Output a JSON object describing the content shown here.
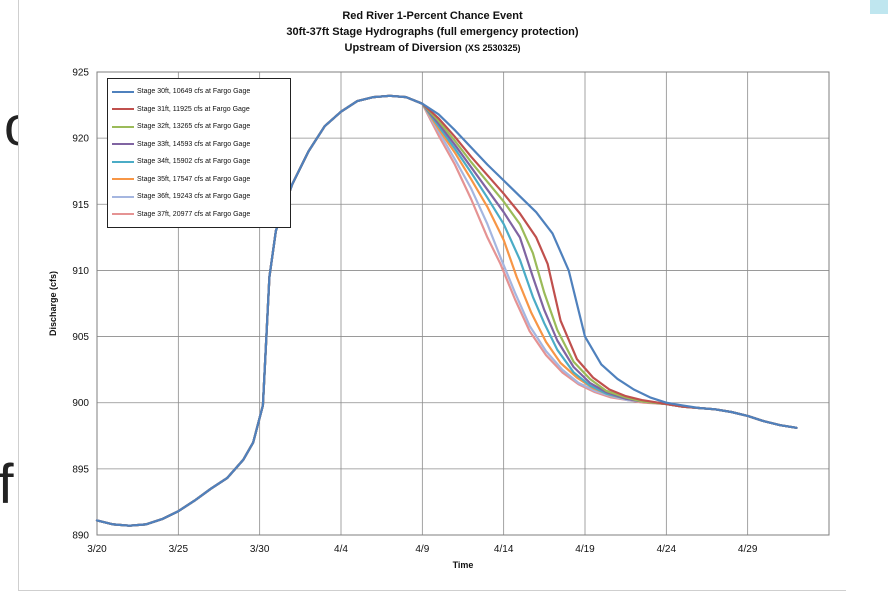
{
  "background_text": {
    "left_glyph_1": "o",
    "left_glyph_2": "f"
  },
  "chart_data": {
    "type": "line",
    "title": "Red River 1-Percent Chance Event",
    "subtitle": "30ft-37ft Stage Hydrographs (full emergency protection)",
    "subtitle2": "Upstream of Diversion",
    "subtitle2_note": "(XS 2530325)",
    "xlabel": "Time",
    "ylabel": "Discharge (cfs)",
    "xlim": [
      0,
      45
    ],
    "ylim": [
      890,
      925
    ],
    "x_ticks": [
      {
        "x": 0,
        "label": "3/20"
      },
      {
        "x": 5,
        "label": "3/25"
      },
      {
        "x": 10,
        "label": "3/30"
      },
      {
        "x": 15,
        "label": "4/4"
      },
      {
        "x": 20,
        "label": "4/9"
      },
      {
        "x": 25,
        "label": "4/14"
      },
      {
        "x": 30,
        "label": "4/19"
      },
      {
        "x": 35,
        "label": "4/24"
      },
      {
        "x": 40,
        "label": "4/29"
      }
    ],
    "y_ticks": [
      890,
      895,
      900,
      905,
      910,
      915,
      920,
      925
    ],
    "grid": true,
    "legend_position": "top-left",
    "common_path": [
      [
        0,
        891.1
      ],
      [
        1,
        890.8
      ],
      [
        2,
        890.7
      ],
      [
        3,
        890.8
      ],
      [
        4,
        891.2
      ],
      [
        5,
        891.8
      ],
      [
        6,
        892.6
      ],
      [
        7,
        893.5
      ],
      [
        8,
        894.3
      ],
      [
        9,
        895.7
      ],
      [
        9.6,
        897.0
      ],
      [
        10.2,
        899.8
      ],
      [
        10.6,
        909.5
      ],
      [
        11,
        913.0
      ],
      [
        12,
        916.5
      ],
      [
        13,
        919.0
      ],
      [
        14,
        920.9
      ],
      [
        15,
        922.0
      ],
      [
        16,
        922.8
      ],
      [
        17,
        923.1
      ],
      [
        18,
        923.2
      ],
      [
        19,
        923.1
      ],
      [
        20,
        922.6
      ]
    ],
    "common_tail": [
      [
        38,
        899.5
      ],
      [
        39,
        899.3
      ],
      [
        40,
        899.0
      ],
      [
        41,
        898.6
      ],
      [
        42,
        898.3
      ],
      [
        43,
        898.1
      ]
    ],
    "series": [
      {
        "name": "Stage 30ft, 10649 cfs at Fargo Gage",
        "color": "#4f81bd",
        "points": [
          [
            21,
            921.8
          ],
          [
            22,
            920.6
          ],
          [
            23,
            919.3
          ],
          [
            24,
            918.0
          ],
          [
            25,
            916.8
          ],
          [
            26,
            915.6
          ],
          [
            27,
            914.4
          ],
          [
            28,
            912.8
          ],
          [
            29,
            910.0
          ],
          [
            30,
            905.0
          ],
          [
            31,
            902.9
          ],
          [
            32,
            901.8
          ],
          [
            33,
            901.0
          ],
          [
            34,
            900.4
          ],
          [
            35,
            900.0
          ],
          [
            36,
            899.8
          ],
          [
            37,
            899.6
          ]
        ]
      },
      {
        "name": "Stage 31ft, 11925 cfs at Fargo Gage",
        "color": "#c0504d",
        "points": [
          [
            21,
            921.5
          ],
          [
            22,
            920.1
          ],
          [
            23,
            918.6
          ],
          [
            24,
            917.2
          ],
          [
            25,
            915.8
          ],
          [
            26,
            914.3
          ],
          [
            27,
            912.5
          ],
          [
            27.7,
            910.5
          ],
          [
            28.5,
            906.2
          ],
          [
            29.5,
            903.3
          ],
          [
            30.5,
            901.9
          ],
          [
            31.5,
            901.0
          ],
          [
            32.5,
            900.5
          ],
          [
            33.5,
            900.2
          ],
          [
            35,
            899.9
          ],
          [
            36,
            899.7
          ],
          [
            37,
            899.6
          ]
        ]
      },
      {
        "name": "Stage 32ft, 13265 cfs at Fargo Gage",
        "color": "#9bbb59",
        "points": [
          [
            21,
            921.3
          ],
          [
            22,
            919.8
          ],
          [
            23,
            918.2
          ],
          [
            24,
            916.7
          ],
          [
            25,
            915.2
          ],
          [
            26,
            913.5
          ],
          [
            26.8,
            911.3
          ],
          [
            27.5,
            908.3
          ],
          [
            28.3,
            905.5
          ],
          [
            29.3,
            903.1
          ],
          [
            30.3,
            901.8
          ],
          [
            31.3,
            900.9
          ],
          [
            32.5,
            900.4
          ],
          [
            33.5,
            900.1
          ],
          [
            35,
            899.9
          ],
          [
            36,
            899.7
          ],
          [
            37,
            899.6
          ]
        ]
      },
      {
        "name": "Stage 33ft, 14593 cfs at Fargo Gage",
        "color": "#8064a2",
        "points": [
          [
            21,
            921.1
          ],
          [
            22,
            919.5
          ],
          [
            23,
            917.8
          ],
          [
            24,
            916.1
          ],
          [
            25,
            914.4
          ],
          [
            26,
            912.5
          ],
          [
            26.8,
            909.5
          ],
          [
            27.5,
            907.0
          ],
          [
            28.3,
            904.7
          ],
          [
            29.3,
            902.7
          ],
          [
            30.3,
            901.5
          ],
          [
            31.3,
            900.8
          ],
          [
            32.5,
            900.3
          ],
          [
            33.5,
            900.1
          ],
          [
            35,
            899.9
          ],
          [
            36,
            899.7
          ],
          [
            37,
            899.6
          ]
        ]
      },
      {
        "name": "Stage 34ft, 15902 cfs at Fargo Gage",
        "color": "#4bacc6",
        "points": [
          [
            21,
            920.9
          ],
          [
            22,
            919.2
          ],
          [
            23,
            917.4
          ],
          [
            24,
            915.5
          ],
          [
            25,
            913.5
          ],
          [
            26,
            910.8
          ],
          [
            26.8,
            908.0
          ],
          [
            27.5,
            906.0
          ],
          [
            28.3,
            904.0
          ],
          [
            29.3,
            902.3
          ],
          [
            30.3,
            901.3
          ],
          [
            31.3,
            900.7
          ],
          [
            32.5,
            900.3
          ],
          [
            33.5,
            900.1
          ],
          [
            35,
            899.9
          ],
          [
            36,
            899.7
          ],
          [
            37,
            899.6
          ]
        ]
      },
      {
        "name": "Stage 35ft, 17547 cfs at Fargo Gage",
        "color": "#f79646",
        "points": [
          [
            21,
            920.7
          ],
          [
            22,
            918.9
          ],
          [
            23,
            916.9
          ],
          [
            24,
            914.8
          ],
          [
            25,
            912.3
          ],
          [
            25.8,
            909.5
          ],
          [
            26.7,
            906.8
          ],
          [
            27.6,
            904.6
          ],
          [
            28.5,
            903.0
          ],
          [
            29.5,
            901.9
          ],
          [
            30.5,
            901.1
          ],
          [
            31.5,
            900.6
          ],
          [
            32.5,
            900.3
          ],
          [
            33.5,
            900.1
          ],
          [
            35,
            899.9
          ],
          [
            36,
            899.7
          ],
          [
            37,
            899.6
          ]
        ]
      },
      {
        "name": "Stage 36ft, 19243 cfs at Fargo Gage",
        "color": "#a5b6e0",
        "points": [
          [
            21,
            920.5
          ],
          [
            22,
            918.4
          ],
          [
            23,
            916.2
          ],
          [
            24,
            913.5
          ],
          [
            24.8,
            911.0
          ],
          [
            25.7,
            908.3
          ],
          [
            26.6,
            905.8
          ],
          [
            27.6,
            903.9
          ],
          [
            28.6,
            902.5
          ],
          [
            29.6,
            901.5
          ],
          [
            30.6,
            900.9
          ],
          [
            31.6,
            900.5
          ],
          [
            32.6,
            900.2
          ],
          [
            33.6,
            900.1
          ],
          [
            35,
            899.9
          ],
          [
            36,
            899.7
          ],
          [
            37,
            899.6
          ]
        ]
      },
      {
        "name": "Stage 37ft, 20977 cfs at Fargo Gage",
        "color": "#e59393",
        "points": [
          [
            21,
            920.2
          ],
          [
            22,
            918.0
          ],
          [
            23,
            915.4
          ],
          [
            24,
            912.5
          ],
          [
            24.8,
            910.5
          ],
          [
            25.7,
            907.8
          ],
          [
            26.6,
            905.4
          ],
          [
            27.6,
            903.6
          ],
          [
            28.6,
            902.3
          ],
          [
            29.6,
            901.4
          ],
          [
            30.6,
            900.8
          ],
          [
            31.6,
            900.4
          ],
          [
            32.6,
            900.2
          ],
          [
            33.6,
            900.0
          ],
          [
            35,
            899.9
          ],
          [
            36,
            899.7
          ],
          [
            37,
            899.6
          ]
        ]
      }
    ]
  }
}
